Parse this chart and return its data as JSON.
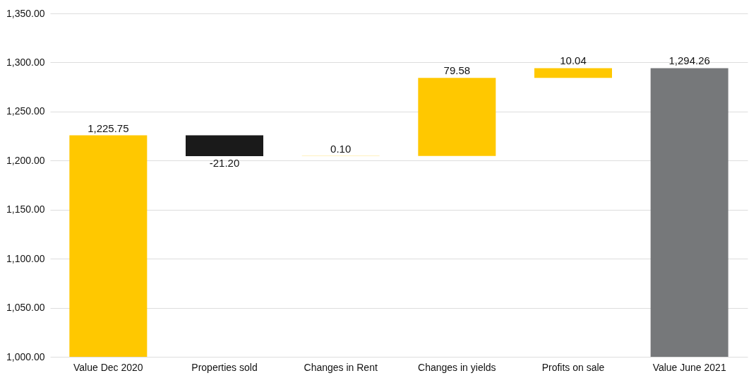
{
  "chart_data": {
    "type": "bar",
    "categories": [
      "Value Dec  2020",
      "Properties sold",
      "Changes in Rent",
      "Changes in yields",
      "Profits on sale",
      "Value June 2021"
    ],
    "base": [
      1000,
      1225.75,
      1204.55,
      1204.65,
      1284.23,
      1000
    ],
    "values": [
      225.75,
      -21.2,
      0.1,
      79.58,
      10.04,
      294.26
    ],
    "colors": [
      "#ffc800",
      "#1a1a1a",
      "#ffc800",
      "#ffc800",
      "#ffc800",
      "#76787a"
    ],
    "value_labels": [
      "1,225.75",
      "-21.20",
      "0.10",
      "79.58",
      "10.04",
      "1,294.26"
    ],
    "ylim": [
      1000,
      1350
    ],
    "yticks": [
      {
        "value": 1000,
        "label": "1,000.00"
      },
      {
        "value": 1050,
        "label": "1,050.00"
      },
      {
        "value": 1100,
        "label": "1,100.00"
      },
      {
        "value": 1150,
        "label": "1,150.00"
      },
      {
        "value": 1200,
        "label": "1,200.00"
      },
      {
        "value": 1250,
        "label": "1,250.00"
      },
      {
        "value": 1300,
        "label": "1,300.00"
      },
      {
        "value": 1350,
        "label": "1,350.00"
      }
    ],
    "grid": "y"
  }
}
